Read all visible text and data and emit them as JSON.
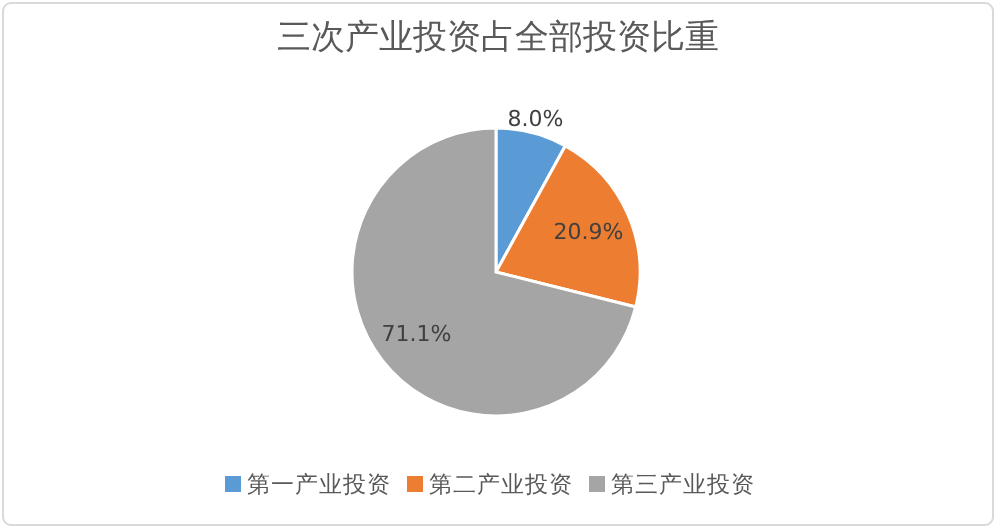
{
  "chart_data": {
    "type": "pie",
    "title": "三次产业投资占全部投资比重",
    "categories": [
      "第一产业投资",
      "第二产业投资",
      "第三产业投资"
    ],
    "values": [
      8.0,
      20.9,
      71.1
    ],
    "colors": [
      "#5b9bd5",
      "#ed7d31",
      "#a5a5a5"
    ],
    "value_labels": [
      "8.0%",
      "20.9%",
      "71.1%"
    ],
    "legend": "bottom"
  }
}
